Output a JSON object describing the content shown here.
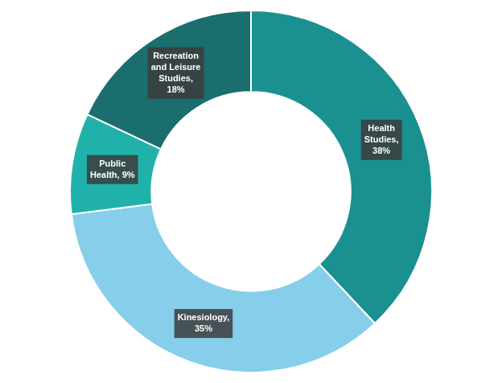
{
  "chart_data": {
    "type": "doughnut",
    "values": [
      38,
      35,
      9,
      18
    ],
    "value_labels": [
      "Health\nStudies,\n38%",
      "Kinesiology,\n35%",
      "Public\nHealth, 9%",
      "Recreation\nand Leisure\nStudies,\n18%"
    ],
    "colors": [
      "#1a9090",
      "#87CEEB",
      "#20B2AA",
      "#1a6e6e"
    ],
    "data_labels": true
  }
}
